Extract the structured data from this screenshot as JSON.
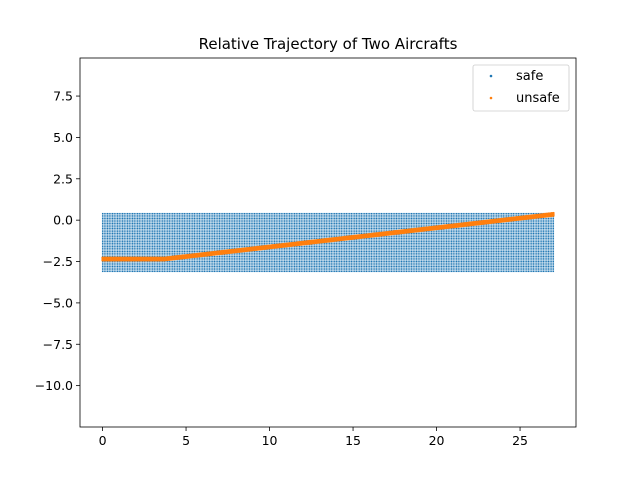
{
  "chart_data": {
    "type": "scatter",
    "title": "Relative Trajectory of Two Aircrafts",
    "xlabel": "",
    "ylabel": "",
    "xlim": [
      -1.35,
      28.35
    ],
    "ylim": [
      -12.5,
      9.8
    ],
    "xticks": [
      0,
      5,
      10,
      15,
      20,
      25
    ],
    "yticks": [
      -10.0,
      -7.5,
      -5.0,
      -2.5,
      0.0,
      2.5,
      5.0,
      7.5
    ],
    "grid": false,
    "legend_position": "top-right",
    "series": [
      {
        "name": "safe",
        "color": "#1f77b4",
        "marker": "dot",
        "region": {
          "x_range": [
            0,
            27
          ],
          "y_range": [
            -3.1,
            0.4
          ]
        }
      },
      {
        "name": "unsafe",
        "color": "#ff7f0e",
        "marker": "dot",
        "trajectory": {
          "x": [
            0,
            3.7,
            27
          ],
          "y": [
            -2.35,
            -2.35,
            0.35
          ]
        }
      }
    ]
  }
}
